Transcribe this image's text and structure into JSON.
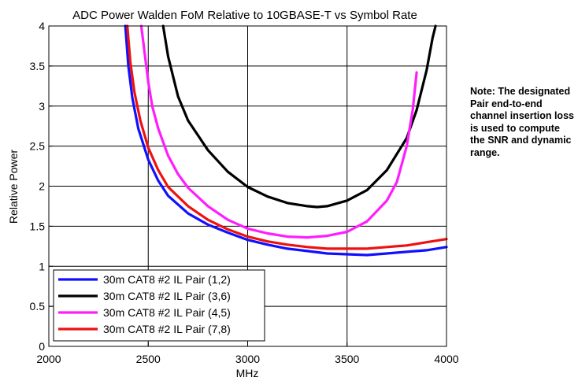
{
  "note": {
    "text": "Note: The designated Pair end-to-end channel insertion loss is used to compute the SNR and dynamic range."
  },
  "colors": {
    "blue": "#1010ff",
    "black": "#000000",
    "magenta": "#ff1cff",
    "red": "#ee1111",
    "grid": "#000000"
  },
  "chart_data": {
    "type": "line",
    "title": "ADC Power Walden FoM  Relative to 10GBASE-T vs Symbol Rate",
    "xlabel": "MHz",
    "ylabel": "Relative Power",
    "xlim": [
      2000,
      4000
    ],
    "ylim": [
      0,
      4
    ],
    "grid": true,
    "legend_position": "bottom-left",
    "x_ticks": [
      2000,
      2500,
      3000,
      3500,
      4000
    ],
    "y_ticks": [
      0,
      0.5,
      1,
      1.5,
      2,
      2.5,
      3,
      3.5,
      4
    ],
    "x_tick_labels": [
      "2000",
      "2500",
      "3000",
      "3500",
      "4000"
    ],
    "y_tick_labels": [
      "0",
      "0.5",
      "1",
      "1.5",
      "2",
      "2.5",
      "3",
      "3.5",
      "4"
    ],
    "series": [
      {
        "name": "30m CAT8 #2 IL Pair (1,2)",
        "color": "#1010ff",
        "points": [
          [
            2385,
            4.0
          ],
          [
            2400,
            3.5
          ],
          [
            2420,
            3.1
          ],
          [
            2450,
            2.72
          ],
          [
            2500,
            2.33
          ],
          [
            2550,
            2.07
          ],
          [
            2600,
            1.88
          ],
          [
            2700,
            1.66
          ],
          [
            2800,
            1.52
          ],
          [
            2900,
            1.42
          ],
          [
            3000,
            1.33
          ],
          [
            3100,
            1.27
          ],
          [
            3200,
            1.22
          ],
          [
            3300,
            1.19
          ],
          [
            3400,
            1.16
          ],
          [
            3500,
            1.15
          ],
          [
            3600,
            1.14
          ],
          [
            3700,
            1.16
          ],
          [
            3800,
            1.18
          ],
          [
            3900,
            1.2
          ],
          [
            4000,
            1.24
          ]
        ]
      },
      {
        "name": "30m CAT8 #2 IL Pair (3,6)",
        "color": "#000000",
        "points": [
          [
            2575,
            4.0
          ],
          [
            2600,
            3.62
          ],
          [
            2650,
            3.12
          ],
          [
            2700,
            2.82
          ],
          [
            2800,
            2.45
          ],
          [
            2900,
            2.18
          ],
          [
            3000,
            1.99
          ],
          [
            3100,
            1.87
          ],
          [
            3200,
            1.79
          ],
          [
            3300,
            1.75
          ],
          [
            3350,
            1.74
          ],
          [
            3400,
            1.75
          ],
          [
            3500,
            1.82
          ],
          [
            3600,
            1.95
          ],
          [
            3700,
            2.2
          ],
          [
            3800,
            2.6
          ],
          [
            3850,
            2.95
          ],
          [
            3900,
            3.45
          ],
          [
            3930,
            3.85
          ],
          [
            3945,
            4.0
          ]
        ]
      },
      {
        "name": "30m CAT8 #2 IL Pair (4,5)",
        "color": "#ff1cff",
        "points": [
          [
            2465,
            4.0
          ],
          [
            2480,
            3.7
          ],
          [
            2500,
            3.3
          ],
          [
            2520,
            3.0
          ],
          [
            2550,
            2.72
          ],
          [
            2600,
            2.38
          ],
          [
            2650,
            2.15
          ],
          [
            2700,
            1.98
          ],
          [
            2800,
            1.75
          ],
          [
            2900,
            1.58
          ],
          [
            3000,
            1.47
          ],
          [
            3100,
            1.41
          ],
          [
            3200,
            1.37
          ],
          [
            3300,
            1.36
          ],
          [
            3400,
            1.38
          ],
          [
            3500,
            1.43
          ],
          [
            3600,
            1.56
          ],
          [
            3700,
            1.82
          ],
          [
            3750,
            2.05
          ],
          [
            3800,
            2.5
          ],
          [
            3830,
            2.95
          ],
          [
            3850,
            3.42
          ]
        ]
      },
      {
        "name": "30m CAT8 #2 IL Pair (7,8)",
        "color": "#ee1111",
        "points": [
          [
            2395,
            4.0
          ],
          [
            2410,
            3.55
          ],
          [
            2430,
            3.18
          ],
          [
            2460,
            2.82
          ],
          [
            2500,
            2.48
          ],
          [
            2550,
            2.2
          ],
          [
            2600,
            1.99
          ],
          [
            2700,
            1.75
          ],
          [
            2800,
            1.58
          ],
          [
            2900,
            1.46
          ],
          [
            3000,
            1.37
          ],
          [
            3100,
            1.31
          ],
          [
            3200,
            1.27
          ],
          [
            3300,
            1.24
          ],
          [
            3400,
            1.22
          ],
          [
            3500,
            1.22
          ],
          [
            3600,
            1.22
          ],
          [
            3700,
            1.24
          ],
          [
            3800,
            1.26
          ],
          [
            3900,
            1.3
          ],
          [
            4000,
            1.34
          ]
        ]
      }
    ]
  }
}
